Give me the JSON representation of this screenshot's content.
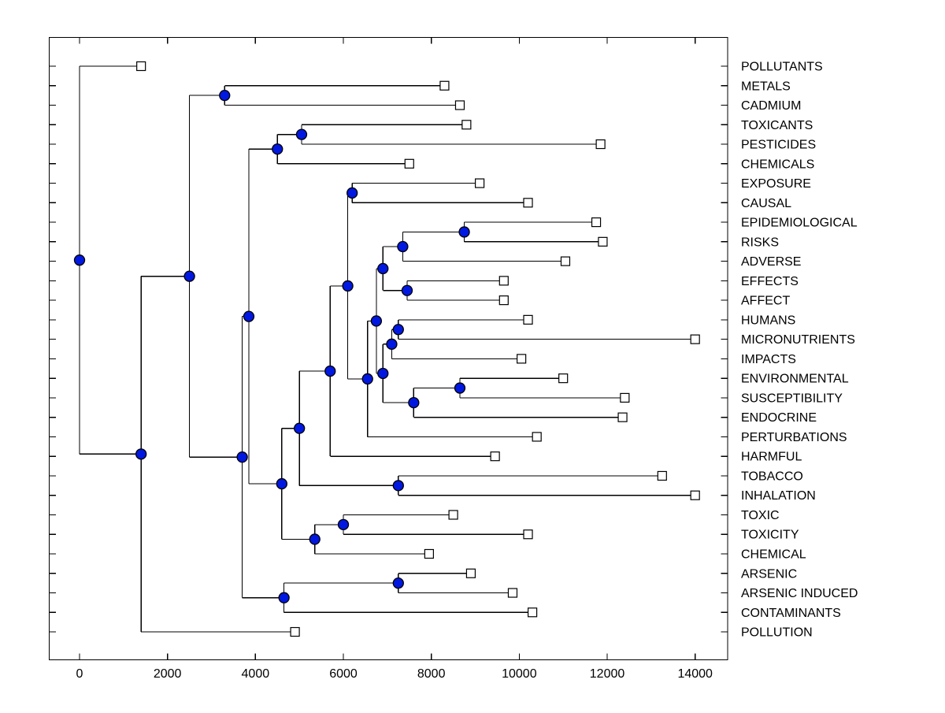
{
  "chart_data": {
    "type": "dendrogram",
    "orientation": "horizontal, leaves on right",
    "title": "",
    "x_ticks": [
      0,
      2000,
      4000,
      6000,
      8000,
      10000,
      12000,
      14000
    ],
    "x_range": [
      -700,
      14750
    ],
    "grid": false,
    "legend": false,
    "markers": {
      "internal_node": "filled-circle",
      "leaf": "open-square"
    },
    "colors": {
      "line": "#000000",
      "node_fill": "#0018e0",
      "leaf_fill": "#ffffff",
      "text": "#000000"
    },
    "leaf_labels": [
      "POLLUTANTS",
      "METALS",
      "CADMIUM",
      "TOXICANTS",
      "PESTICIDES",
      "CHEMICALS",
      "EXPOSURE",
      "CAUSAL",
      "EPIDEMIOLOGICAL",
      "RISKS",
      "ADVERSE",
      "EFFECTS",
      "AFFECT",
      "HUMANS",
      "MICRONUTRIENTS",
      "IMPACTS",
      "ENVIRONMENTAL",
      "SUSCEPTIBILITY",
      "ENDOCRINE",
      "PERTURBATIONS",
      "HARMFUL",
      "TOBACCO",
      "INHALATION",
      "TOXIC",
      "TOXICITY",
      "CHEMICAL",
      "ARSENIC",
      "ARSENIC INDUCED",
      "CONTAMINANTS",
      "POLLUTION"
    ],
    "tree": {
      "v": 0,
      "c": [
        {
          "l": "POLLUTANTS",
          "v": 1400
        },
        {
          "v": 1400,
          "c": [
            {
              "v": 2500,
              "c": [
                {
                  "v": 3300,
                  "c": [
                    {
                      "l": "METALS",
                      "v": 8300
                    },
                    {
                      "l": "CADMIUM",
                      "v": 8650
                    }
                  ]
                },
                {
                  "v": 3700,
                  "c": [
                    {
                      "v": 3850,
                      "c": [
                        {
                          "v": 4500,
                          "c": [
                            {
                              "v": 5050,
                              "c": [
                                {
                                  "l": "TOXICANTS",
                                  "v": 8800
                                },
                                {
                                  "l": "PESTICIDES",
                                  "v": 11850
                                }
                              ]
                            },
                            {
                              "l": "CHEMICALS",
                              "v": 7500
                            }
                          ]
                        },
                        {
                          "v": 4600,
                          "c": [
                            {
                              "v": 5000,
                              "c": [
                                {
                                  "v": 5700,
                                  "c": [
                                    {
                                      "v": 6100,
                                      "c": [
                                        {
                                          "v": 6200,
                                          "c": [
                                            {
                                              "l": "EXPOSURE",
                                              "v": 9100
                                            },
                                            {
                                              "l": "CAUSAL",
                                              "v": 10200
                                            }
                                          ]
                                        },
                                        {
                                          "v": 6550,
                                          "c": [
                                            {
                                              "v": 6750,
                                              "c": [
                                                {
                                                  "v": 6900,
                                                  "c": [
                                                    {
                                                      "v": 7350,
                                                      "c": [
                                                        {
                                                          "v": 8750,
                                                          "c": [
                                                            {
                                                              "l": "EPIDEMIOLOGICAL",
                                                              "v": 11750
                                                            },
                                                            {
                                                              "l": "RISKS",
                                                              "v": 11900
                                                            }
                                                          ]
                                                        },
                                                        {
                                                          "l": "ADVERSE",
                                                          "v": 11050
                                                        }
                                                      ]
                                                    },
                                                    {
                                                      "v": 7450,
                                                      "c": [
                                                        {
                                                          "l": "EFFECTS",
                                                          "v": 9650
                                                        },
                                                        {
                                                          "l": "AFFECT",
                                                          "v": 9650
                                                        }
                                                      ]
                                                    }
                                                  ]
                                                },
                                                {
                                                  "v": 6900,
                                                  "c": [
                                                    {
                                                      "v": 7100,
                                                      "c": [
                                                        {
                                                          "v": 7250,
                                                          "c": [
                                                            {
                                                              "l": "HUMANS",
                                                              "v": 10200
                                                            },
                                                            {
                                                              "l": "MICRONUTRIENTS",
                                                              "v": 14000
                                                            }
                                                          ]
                                                        },
                                                        {
                                                          "l": "IMPACTS",
                                                          "v": 10050
                                                        }
                                                      ]
                                                    },
                                                    {
                                                      "v": 7600,
                                                      "c": [
                                                        {
                                                          "v": 8650,
                                                          "c": [
                                                            {
                                                              "l": "ENVIRONMENTAL",
                                                              "v": 11000
                                                            },
                                                            {
                                                              "l": "SUSCEPTIBILITY",
                                                              "v": 12400
                                                            }
                                                          ]
                                                        },
                                                        {
                                                          "l": "ENDOCRINE",
                                                          "v": 12350
                                                        }
                                                      ]
                                                    }
                                                  ]
                                                }
                                              ]
                                            },
                                            {
                                              "l": "PERTURBATIONS",
                                              "v": 10400
                                            }
                                          ]
                                        }
                                      ]
                                    },
                                    {
                                      "l": "HARMFUL",
                                      "v": 9450
                                    }
                                  ]
                                },
                                {
                                  "v": 7250,
                                  "c": [
                                    {
                                      "l": "TOBACCO",
                                      "v": 13250
                                    },
                                    {
                                      "l": "INHALATION",
                                      "v": 14000
                                    }
                                  ]
                                }
                              ]
                            },
                            {
                              "v": 5350,
                              "c": [
                                {
                                  "v": 6000,
                                  "c": [
                                    {
                                      "l": "TOXIC",
                                      "v": 8500
                                    },
                                    {
                                      "l": "TOXICITY",
                                      "v": 10200
                                    }
                                  ]
                                },
                                {
                                  "l": "CHEMICAL",
                                  "v": 7950
                                }
                              ]
                            }
                          ]
                        }
                      ]
                    },
                    {
                      "v": 4650,
                      "c": [
                        {
                          "v": 7250,
                          "c": [
                            {
                              "l": "ARSENIC",
                              "v": 8900
                            },
                            {
                              "l": "ARSENIC INDUCED",
                              "v": 9850
                            }
                          ]
                        },
                        {
                          "l": "CONTAMINANTS",
                          "v": 10300
                        }
                      ]
                    }
                  ]
                }
              ]
            },
            {
              "l": "POLLUTION",
              "v": 4900
            }
          ]
        }
      ]
    }
  }
}
